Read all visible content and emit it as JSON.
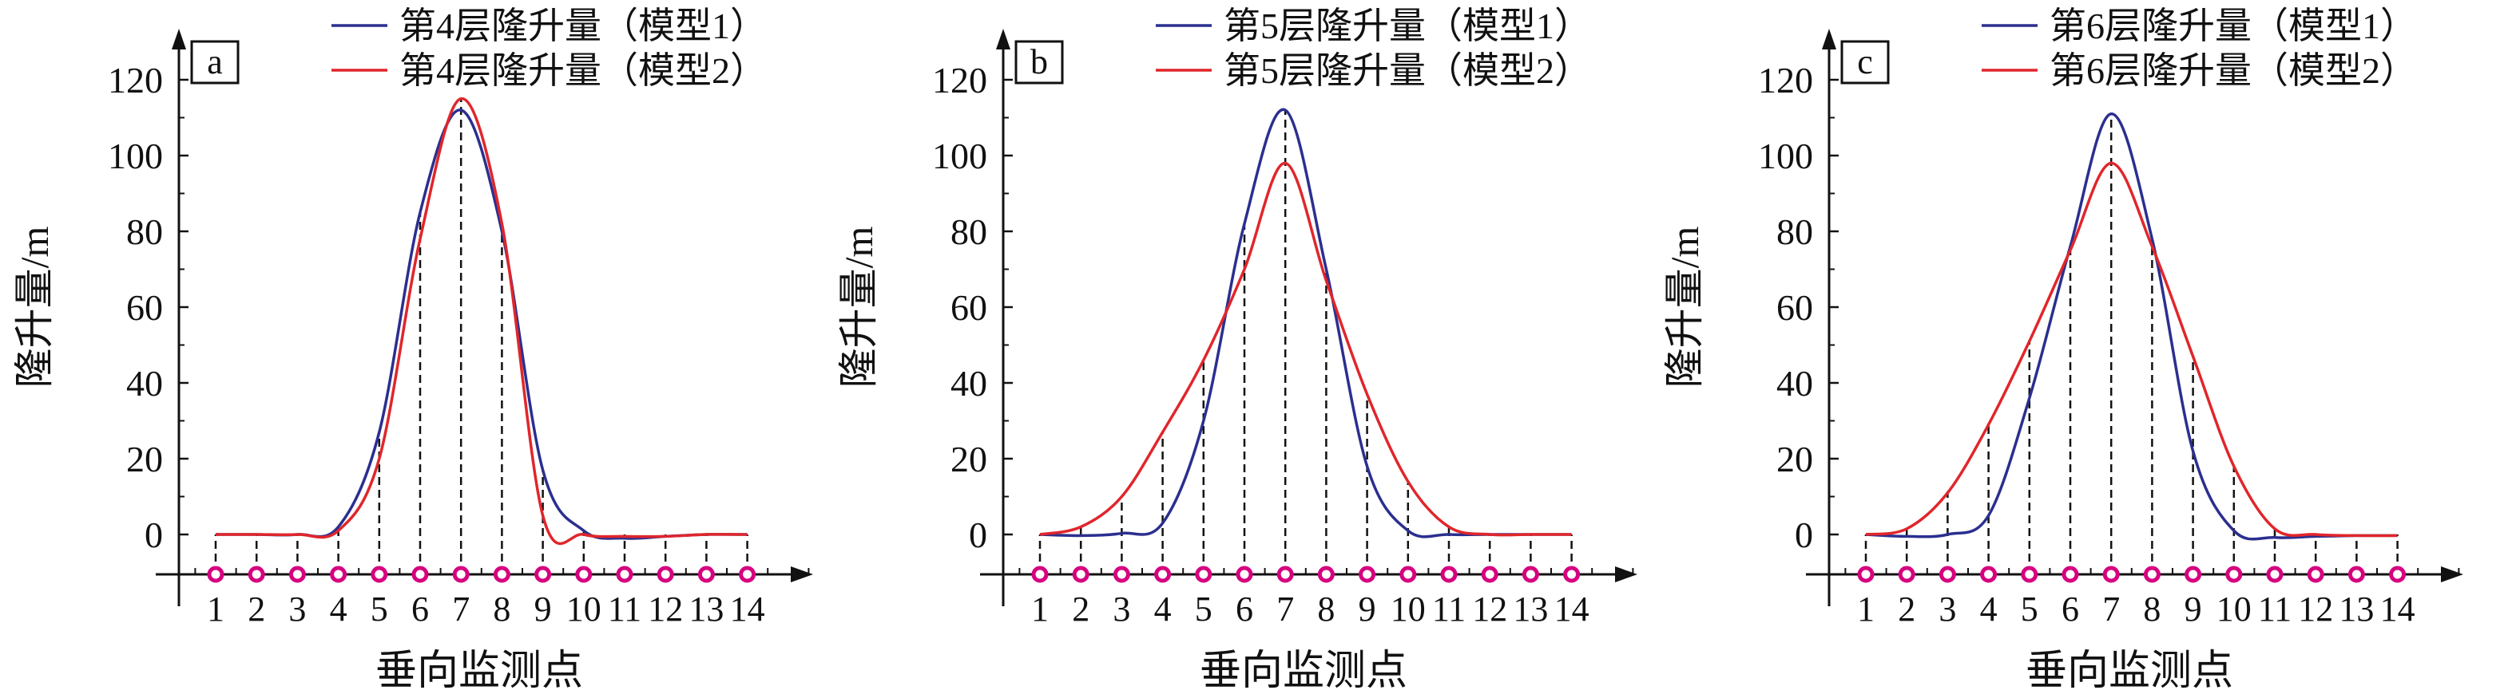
{
  "colors": {
    "model1": "#2b2f8f",
    "model2": "#e0262b",
    "marker": "#d6007f",
    "axis": "#111111"
  },
  "chart_data": [
    {
      "type": "line",
      "panel_label": "a",
      "xlabel": "垂向监测点",
      "ylabel": "隆升量/m",
      "x": [
        1,
        2,
        3,
        4,
        5,
        6,
        7,
        8,
        9,
        10,
        11,
        12,
        13,
        14
      ],
      "xticks": [
        "1",
        "2",
        "3",
        "4",
        "5",
        "6",
        "7",
        "8",
        "9",
        "10",
        "11",
        "12",
        "13",
        "14"
      ],
      "yticks": [
        "0",
        "20",
        "40",
        "60",
        "80",
        "100",
        "120"
      ],
      "ylim": [
        0,
        120
      ],
      "legend_position": "top-right",
      "series": [
        {
          "name": "第4层隆升量（模型1）",
          "values": [
            0,
            0,
            0,
            2,
            27,
            85,
            112,
            80,
            17,
            1,
            -1,
            -0.5,
            0,
            0
          ]
        },
        {
          "name": "第4层隆升量（模型2）",
          "values": [
            0,
            0,
            0,
            1,
            20,
            78,
            115,
            82,
            5,
            0,
            -0.5,
            -0.5,
            0,
            0
          ]
        }
      ]
    },
    {
      "type": "line",
      "panel_label": "b",
      "xlabel": "垂向监测点",
      "ylabel": "隆升量/m",
      "x": [
        1,
        2,
        3,
        4,
        5,
        6,
        7,
        8,
        9,
        10,
        11,
        12,
        13,
        14
      ],
      "xticks": [
        "1",
        "2",
        "3",
        "4",
        "5",
        "6",
        "7",
        "8",
        "9",
        "10",
        "11",
        "12",
        "13",
        "14"
      ],
      "yticks": [
        "0",
        "20",
        "40",
        "60",
        "80",
        "100",
        "120"
      ],
      "ylim": [
        0,
        120
      ],
      "legend_position": "top-right",
      "series": [
        {
          "name": "第5层隆升量（模型1）",
          "values": [
            0,
            -0.3,
            0.3,
            3,
            30,
            82,
            112,
            70,
            18,
            1,
            0,
            0,
            0,
            0
          ]
        },
        {
          "name": "第5层隆升量（模型2）",
          "values": [
            0,
            2,
            10,
            27,
            46,
            70,
            98,
            67,
            37,
            14,
            2,
            0,
            0,
            0
          ]
        }
      ]
    },
    {
      "type": "line",
      "panel_label": "c",
      "xlabel": "垂向监测点",
      "ylabel": "隆升量/m",
      "x": [
        1,
        2,
        3,
        4,
        5,
        6,
        7,
        8,
        9,
        10,
        11,
        12,
        13,
        14
      ],
      "xticks": [
        "1",
        "2",
        "3",
        "4",
        "5",
        "6",
        "7",
        "8",
        "9",
        "10",
        "11",
        "12",
        "13",
        "14"
      ],
      "yticks": [
        "0",
        "20",
        "40",
        "60",
        "80",
        "100",
        "120"
      ],
      "ylim": [
        0,
        120
      ],
      "legend_position": "top-right",
      "series": [
        {
          "name": "第6层隆升量（模型1）",
          "values": [
            0,
            -0.5,
            0,
            5,
            36,
            76,
            111,
            78,
            22,
            1,
            -0.8,
            -0.5,
            -0.3,
            -0.3
          ]
        },
        {
          "name": "第6层隆升量（模型2）",
          "values": [
            0,
            1.5,
            11,
            29,
            51,
            75,
            98,
            76,
            47,
            18,
            1.5,
            0,
            -0.3,
            -0.3
          ]
        }
      ]
    }
  ]
}
